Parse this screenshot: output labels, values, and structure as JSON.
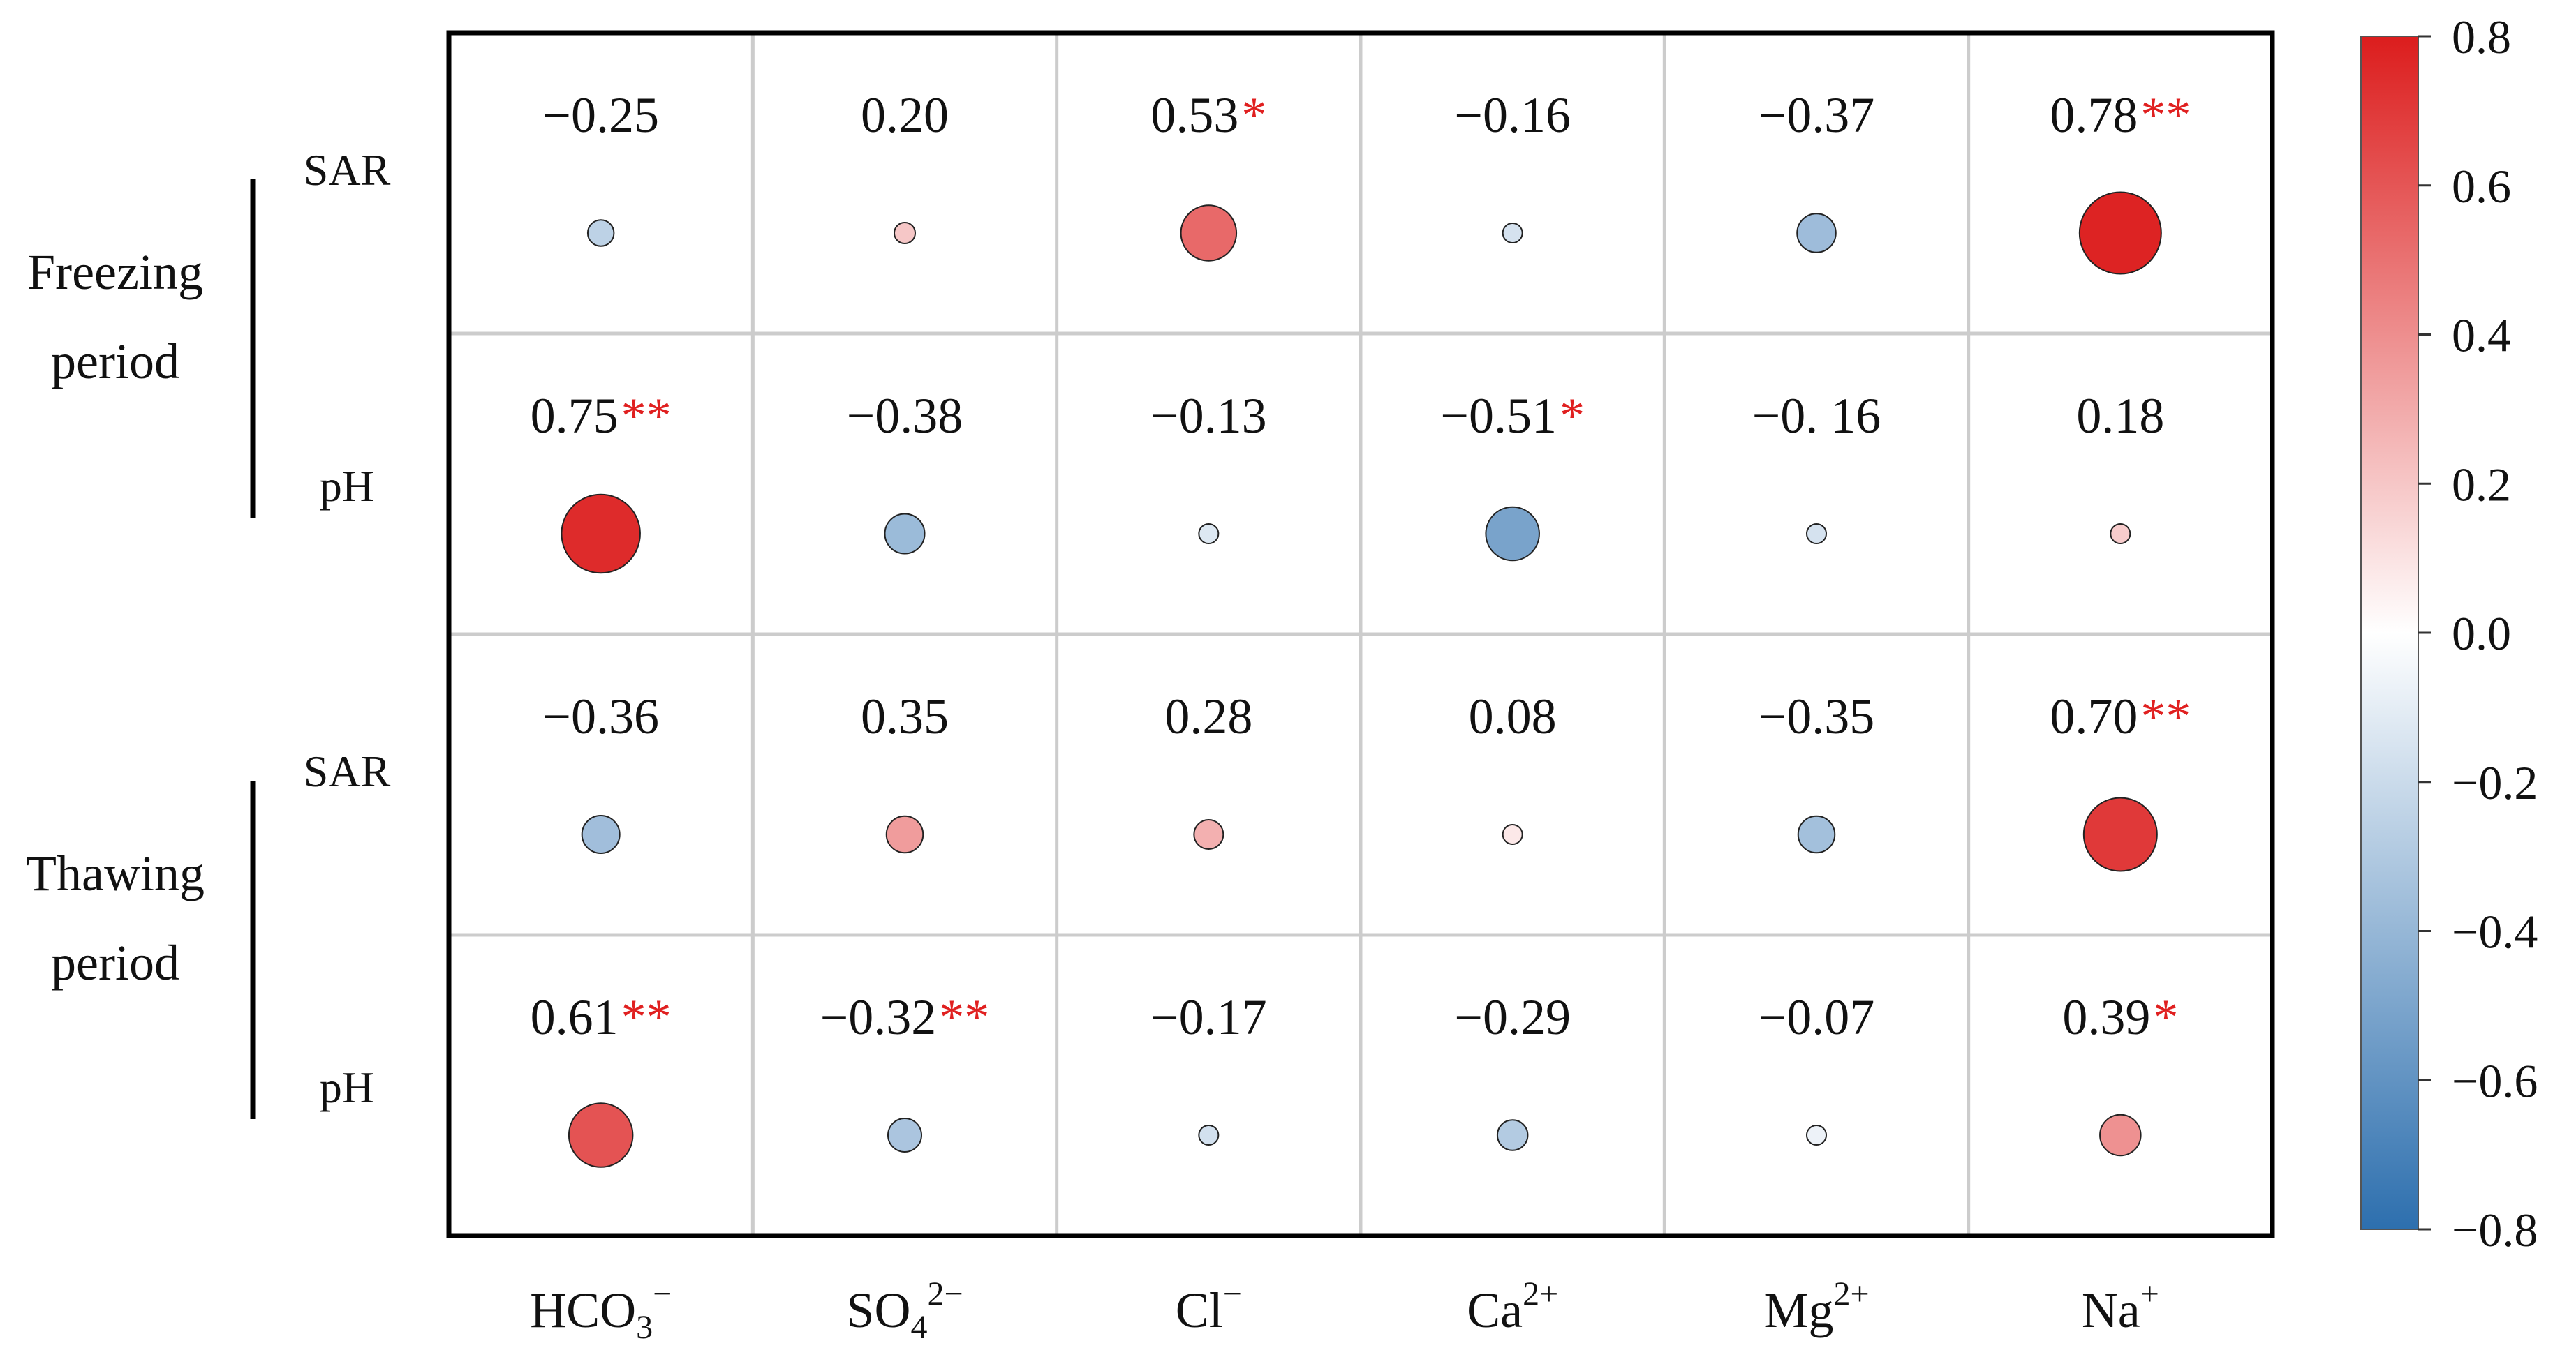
{
  "chart_data": {
    "type": "heatmap",
    "title": "",
    "columns": [
      {
        "base": "HCO",
        "sub": "3",
        "sup": "−"
      },
      {
        "base": "SO",
        "sub": "4",
        "sup": "2−"
      },
      {
        "base": "Cl",
        "sub": "",
        "sup": "−"
      },
      {
        "base": "Ca",
        "sub": "",
        "sup": "2+"
      },
      {
        "base": "Mg",
        "sub": "",
        "sup": "2+"
      },
      {
        "base": "Na",
        "sub": "",
        "sup": "+"
      }
    ],
    "groups": [
      {
        "name_lines": [
          "Freezing",
          "period"
        ],
        "rows": [
          "SAR",
          "pH"
        ]
      },
      {
        "name_lines": [
          "Thawing",
          "period"
        ],
        "rows": [
          "SAR",
          "pH"
        ]
      }
    ],
    "cells": [
      [
        {
          "label": "−0.25",
          "stars": "",
          "value": -0.25
        },
        {
          "label": "0.20",
          "stars": "",
          "value": 0.2
        },
        {
          "label": "0.53",
          "stars": "*",
          "value": 0.53
        },
        {
          "label": "−0.16",
          "stars": "",
          "value": -0.16
        },
        {
          "label": "−0.37",
          "stars": "",
          "value": -0.37
        },
        {
          "label": "0.78",
          "stars": "**",
          "value": 0.78
        }
      ],
      [
        {
          "label": "0.75",
          "stars": "**",
          "value": 0.75
        },
        {
          "label": "−0.38",
          "stars": "",
          "value": -0.38
        },
        {
          "label": "−0.13",
          "stars": "",
          "value": -0.13
        },
        {
          "label": "−0.51",
          "stars": "*",
          "value": -0.51
        },
        {
          "label": "−0. 16",
          "stars": "",
          "value": -0.16
        },
        {
          "label": "0.18",
          "stars": "",
          "value": 0.18
        }
      ],
      [
        {
          "label": "−0.36",
          "stars": "",
          "value": -0.36
        },
        {
          "label": "0.35",
          "stars": "",
          "value": 0.35
        },
        {
          "label": "0.28",
          "stars": "",
          "value": 0.28
        },
        {
          "label": "0.08",
          "stars": "",
          "value": 0.08
        },
        {
          "label": "−0.35",
          "stars": "",
          "value": -0.35
        },
        {
          "label": "0.70",
          "stars": "**",
          "value": 0.7
        }
      ],
      [
        {
          "label": "0.61",
          "stars": "**",
          "value": 0.61
        },
        {
          "label": "−0.32",
          "stars": "**",
          "value": -0.32
        },
        {
          "label": "−0.17",
          "stars": "",
          "value": -0.17
        },
        {
          "label": "−0.29",
          "stars": "",
          "value": -0.29
        },
        {
          "label": "−0.07",
          "stars": "",
          "value": -0.07
        },
        {
          "label": "0.39",
          "stars": "*",
          "value": 0.39
        }
      ]
    ],
    "colorbar": {
      "min": -0.8,
      "max": 0.8,
      "ticks": [
        {
          "value": 0.8,
          "label": "0.8"
        },
        {
          "value": 0.6,
          "label": "0.6"
        },
        {
          "value": 0.4,
          "label": "0.4"
        },
        {
          "value": 0.2,
          "label": "0.2"
        },
        {
          "value": 0.0,
          "label": "0.0"
        },
        {
          "value": -0.2,
          "label": "−0.2"
        },
        {
          "value": -0.4,
          "label": "−0.4"
        },
        {
          "value": -0.6,
          "label": "−0.6"
        },
        {
          "value": -0.8,
          "label": "−0.8"
        }
      ],
      "color_low": "#2d6fae",
      "color_mid": "#ffffff",
      "color_high": "#dc1d1d"
    },
    "star_color": "#e02020",
    "grid_color": "#cccccc"
  }
}
